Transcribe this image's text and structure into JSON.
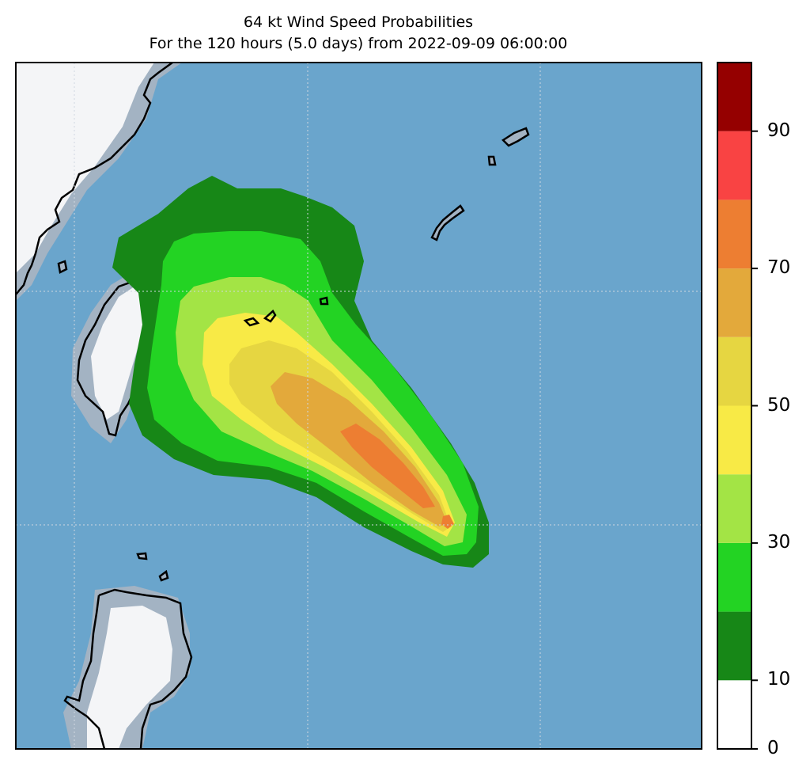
{
  "title_line1": "64 kt Wind Speed Probabilities",
  "title_line2": "For the 120 hours (5.0 days) from 2022-09-09 06:00:00",
  "colorbar": {
    "levels": [
      0,
      10,
      20,
      30,
      40,
      50,
      60,
      70,
      80,
      90,
      100
    ],
    "colors": [
      "#ffffff",
      "#178717",
      "#23d323",
      "#a3e445",
      "#f8ea46",
      "#e6d641",
      "#e3a93b",
      "#ed7e32",
      "#f94343",
      "#950000",
      "#8225d9"
    ],
    "tick_labels": [
      "0",
      "10",
      "30",
      "50",
      "70",
      "90"
    ],
    "tick_values": [
      0,
      10,
      30,
      50,
      70,
      90
    ]
  },
  "map_colors": {
    "ocean": "#6aa5cc",
    "land": "#f4f5f7",
    "coast_shade": "#a3b3c3",
    "coastline": "#000000",
    "gridline": "#d0d8e0"
  }
}
